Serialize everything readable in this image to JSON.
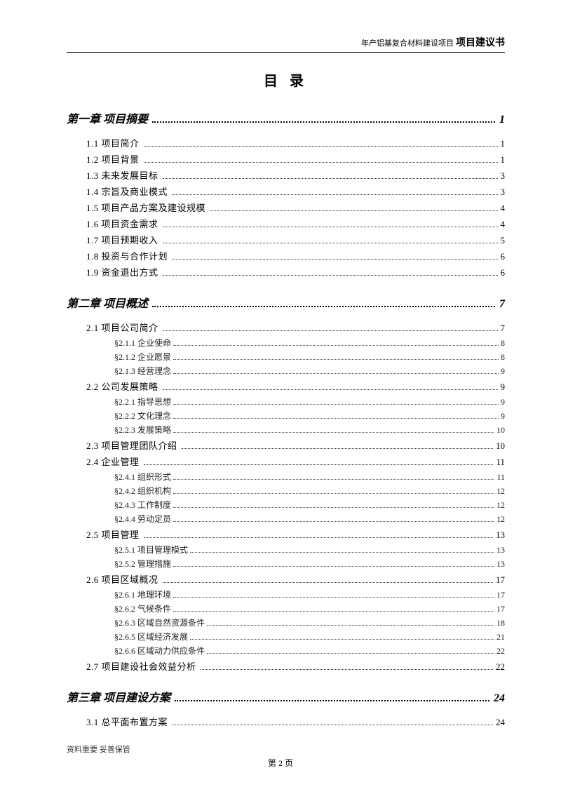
{
  "header": {
    "prefix": "年产铝基复合材料建设项目",
    "title": "项目建议书"
  },
  "toc_title": "目 录",
  "chapters": [
    {
      "label": "第一章 项目摘要",
      "page": "1",
      "sections": [
        {
          "label": "1.1 项目简介",
          "page": "1"
        },
        {
          "label": "1.2 项目背景",
          "page": "1"
        },
        {
          "label": "1.3 未来发展目标",
          "page": "3"
        },
        {
          "label": "1.4 宗旨及商业模式",
          "page": "3"
        },
        {
          "label": "1.5 项目产品方案及建设规模",
          "page": "4"
        },
        {
          "label": "1.6 项目资金需求",
          "page": "4"
        },
        {
          "label": "1.7 项目预期收入",
          "page": "5"
        },
        {
          "label": "1.8 投资与合作计划",
          "page": "6"
        },
        {
          "label": "1.9 资金退出方式",
          "page": "6"
        }
      ]
    },
    {
      "label": "第二章 项目概述",
      "page": "7",
      "sections": [
        {
          "label": "2.1 项目公司简介",
          "page": "7",
          "subs": [
            {
              "label": "§2.1.1 企业使命",
              "page": "8"
            },
            {
              "label": "§2.1.2 企业愿景",
              "page": "8"
            },
            {
              "label": "§2.1.3 经营理念",
              "page": "9"
            }
          ]
        },
        {
          "label": "2.2 公司发展策略",
          "page": "9",
          "subs": [
            {
              "label": "§2.2.1 指导思想",
              "page": "9"
            },
            {
              "label": "§2.2.2 文化理念",
              "page": "9"
            },
            {
              "label": "§2.2.3 发展策略",
              "page": "10"
            }
          ]
        },
        {
          "label": "2.3 项目管理团队介绍",
          "page": "10"
        },
        {
          "label": "2.4 企业管理",
          "page": "11",
          "subs": [
            {
              "label": "§2.4.1 组织形式",
              "page": "11"
            },
            {
              "label": "§2.4.2 组织机构",
              "page": "12"
            },
            {
              "label": "§2.4.3 工作制度",
              "page": "12"
            },
            {
              "label": "§2.4.4 劳动定员",
              "page": "12"
            }
          ]
        },
        {
          "label": "2.5 项目管理",
          "page": "13",
          "subs": [
            {
              "label": "§2.5.1 项目管理模式",
              "page": "13"
            },
            {
              "label": "§2.5.2 管理措施",
              "page": "13"
            }
          ]
        },
        {
          "label": "2.6 项目区域概况",
          "page": "17",
          "subs": [
            {
              "label": "§2.6.1 地理环境",
              "page": "17"
            },
            {
              "label": "§2.6.2 气候条件",
              "page": "17"
            },
            {
              "label": "§2.6.3 区域自然资源条件",
              "page": "18"
            },
            {
              "label": "§2.6.5 区域经济发展",
              "page": "21"
            },
            {
              "label": "§2.6.6 区域动力供应条件",
              "page": "22"
            }
          ]
        },
        {
          "label": "2.7 项目建设社会效益分析",
          "page": "22"
        }
      ]
    },
    {
      "label": "第三章 项目建设方案",
      "page": "24",
      "sections": [
        {
          "label": "3.1 总平面布置方案",
          "page": "24"
        }
      ]
    }
  ],
  "footer": {
    "note": "资料重要  妥善保管",
    "page_label": "第 2 页"
  }
}
